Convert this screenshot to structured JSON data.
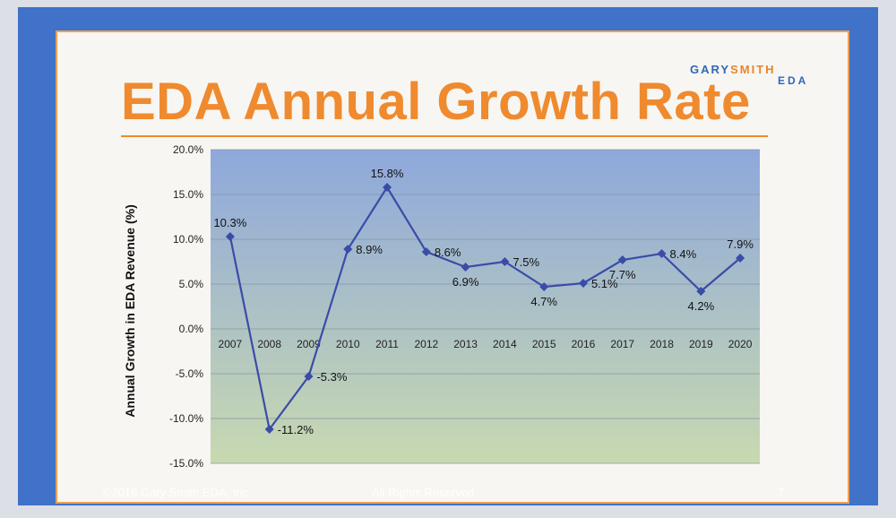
{
  "slide": {
    "title": "EDA Annual Growth Rate",
    "logo_part1": "GARY",
    "logo_part2": "SMITH",
    "logo_sub": "EDA",
    "footer_left": "©2016 Gary Smith EDA, Inc.",
    "footer_center": "All Rights Reserved",
    "footer_right": "7"
  },
  "colors": {
    "frame": "#3f72c8",
    "title": "#ef8a2e",
    "line": "#3a4ca8",
    "plot_top": "#8ea8dc",
    "plot_bottom": "#c8d9b0"
  },
  "chart_data": {
    "type": "line",
    "title": "",
    "xlabel": "",
    "ylabel": "Annual Growth in EDA Revenue (%)",
    "categories": [
      "2007",
      "2008",
      "2009",
      "2010",
      "2011",
      "2012",
      "2013",
      "2014",
      "2015",
      "2016",
      "2017",
      "2018",
      "2019",
      "2020"
    ],
    "values": [
      10.3,
      -11.2,
      -5.3,
      8.9,
      15.8,
      8.6,
      6.9,
      7.5,
      4.7,
      5.1,
      7.7,
      8.4,
      4.2,
      7.9
    ],
    "labels": [
      "10.3%",
      "-11.2%",
      "-5.3%",
      "8.9%",
      "15.8%",
      "8.6%",
      "6.9%",
      "7.5%",
      "4.7%",
      "5.1%",
      "7.7%",
      "8.4%",
      "4.2%",
      "7.9%"
    ],
    "label_positions": [
      "above",
      "right",
      "right",
      "right",
      "above",
      "right",
      "below",
      "right",
      "below",
      "right",
      "below",
      "right",
      "below",
      "above"
    ],
    "yticks": [
      20,
      15,
      10,
      5,
      0,
      -5,
      -10,
      -15
    ],
    "ytick_labels": [
      "20.0%",
      "15.0%",
      "10.0%",
      "5.0%",
      "0.0%",
      "-5.0%",
      "-10.0%",
      "-15.0%"
    ],
    "ylim": [
      -15,
      20
    ],
    "grid": true
  }
}
